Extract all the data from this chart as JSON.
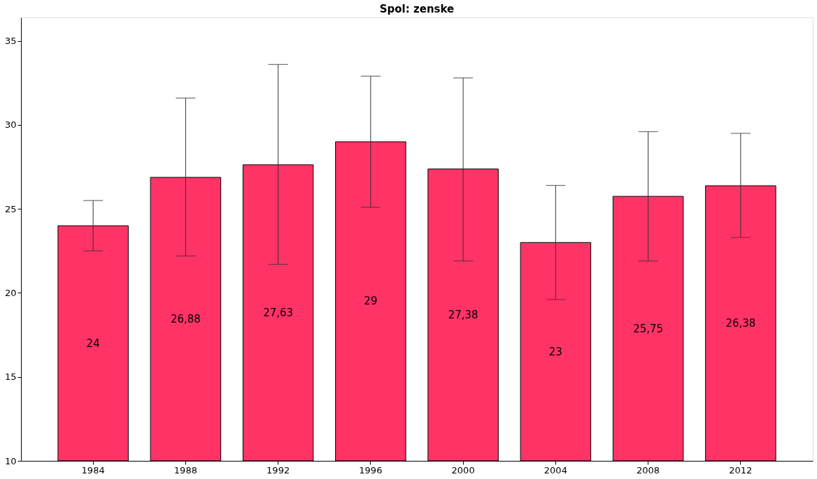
{
  "chart_data": {
    "type": "bar",
    "title": "Spol: zenske",
    "categories": [
      "1984",
      "1988",
      "1992",
      "1996",
      "2000",
      "2004",
      "2008",
      "2012"
    ],
    "values": [
      24,
      26.88,
      27.63,
      29,
      27.38,
      23,
      25.75,
      26.38
    ],
    "value_labels": [
      "24",
      "26,88",
      "27,63",
      "29",
      "27,38",
      "23",
      "25,75",
      "26,38"
    ],
    "errors": [
      [
        22.5,
        25.5
      ],
      [
        22.2,
        31.6
      ],
      [
        21.7,
        33.6
      ],
      [
        25.1,
        32.9
      ],
      [
        21.9,
        32.8
      ],
      [
        19.6,
        26.4
      ],
      [
        21.9,
        29.6
      ],
      [
        23.3,
        29.5
      ]
    ],
    "color": "#ff3366",
    "ylim": [
      10,
      36.4
    ],
    "yticks": [
      10,
      15,
      20,
      25,
      30,
      35
    ],
    "grid": false
  }
}
